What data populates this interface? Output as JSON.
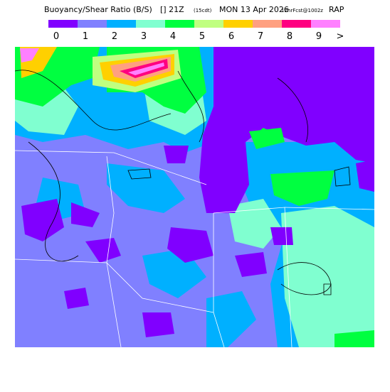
{
  "header": {
    "title": "Buoyancy/Shear Ratio (B/S)",
    "marker": "[] 21Z",
    "local_time": "(15cdt)",
    "date": "MON 13 Apr 2026",
    "forecast": "12hrFcst@1002z",
    "model": "RAP"
  },
  "legend": {
    "items": [
      {
        "label": "0",
        "color": "#8000ff"
      },
      {
        "label": "1",
        "color": "#8080ff"
      },
      {
        "label": "2",
        "color": "#00b0ff"
      },
      {
        "label": "3",
        "color": "#80ffd0"
      },
      {
        "label": "4",
        "color": "#00ff40"
      },
      {
        "label": "5",
        "color": "#c0ff80"
      },
      {
        "label": "6",
        "color": "#ffd000"
      },
      {
        "label": "7",
        "color": "#ffa080"
      },
      {
        "label": "8",
        "color": "#ff0080"
      },
      {
        "label": "9",
        "color": "#ff80ff"
      }
    ],
    "overflow_label": ">"
  }
}
